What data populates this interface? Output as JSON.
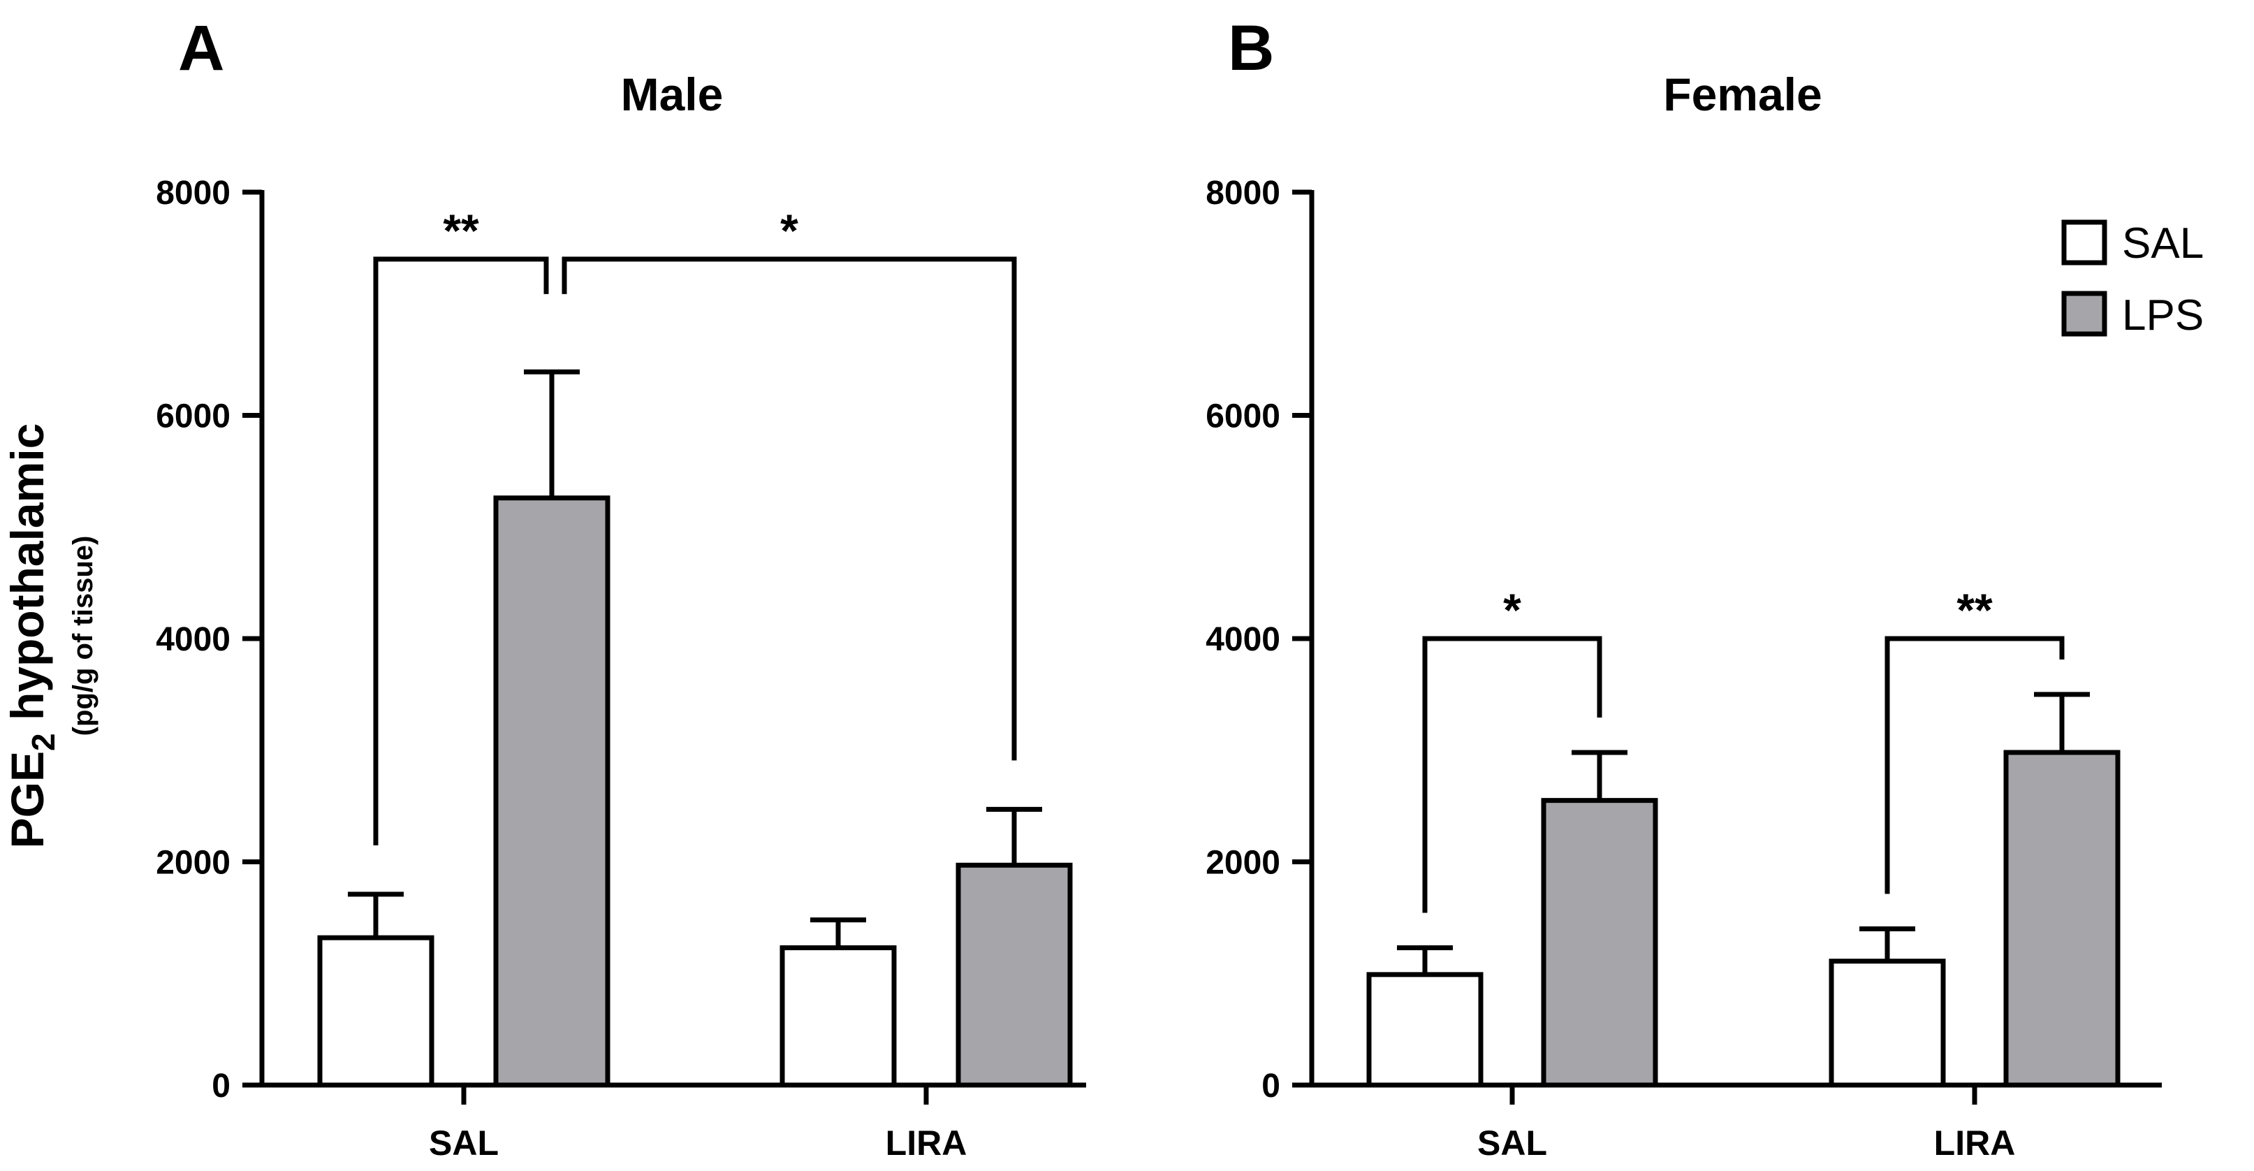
{
  "y_axis": {
    "label_main": "PGE",
    "label_subscript": "2",
    "label_rest": " hypothalamic",
    "label_units": "(pg/g of tissue)"
  },
  "legend": {
    "items": [
      {
        "label": "SAL",
        "color": "#ffffff"
      },
      {
        "label": "LPS",
        "color": "#a6a6aa"
      }
    ]
  },
  "chart_data": [
    {
      "type": "bar",
      "panel": "A",
      "title": "Male",
      "categories": [
        "SAL",
        "LIRA"
      ],
      "ylabel": "PGE2 hypothalamic (pg/g of tissue)",
      "ylim": [
        0,
        8000
      ],
      "yticks": [
        0,
        2000,
        4000,
        6000,
        8000
      ],
      "series": [
        {
          "name": "SAL",
          "color": "#ffffff",
          "values": [
            1320,
            1230
          ],
          "errors": [
            390,
            250
          ]
        },
        {
          "name": "LPS",
          "color": "#a6a6aa",
          "values": [
            5260,
            1970
          ],
          "errors": [
            1130,
            500
          ]
        }
      ],
      "significance": [
        {
          "label": "**",
          "from": {
            "category": 0,
            "series": 0
          },
          "to": {
            "category": 0,
            "series": 1
          }
        },
        {
          "label": "*",
          "from": {
            "category": 0,
            "series": 1
          },
          "to": {
            "category": 1,
            "series": 1
          }
        }
      ]
    },
    {
      "type": "bar",
      "panel": "B",
      "title": "Female",
      "categories": [
        "SAL",
        "LIRA"
      ],
      "ylabel": "PGE2 hypothalamic (pg/g of tissue)",
      "ylim": [
        0,
        8000
      ],
      "yticks": [
        0,
        2000,
        4000,
        6000,
        8000
      ],
      "series": [
        {
          "name": "SAL",
          "color": "#ffffff",
          "values": [
            990,
            1110
          ],
          "errors": [
            240,
            290
          ]
        },
        {
          "name": "LPS",
          "color": "#a6a6aa",
          "values": [
            2550,
            2980
          ],
          "errors": [
            430,
            520
          ]
        }
      ],
      "significance": [
        {
          "label": "*",
          "from": {
            "category": 0,
            "series": 0
          },
          "to": {
            "category": 0,
            "series": 1
          }
        },
        {
          "label": "**",
          "from": {
            "category": 1,
            "series": 0
          },
          "to": {
            "category": 1,
            "series": 1
          }
        }
      ]
    }
  ]
}
